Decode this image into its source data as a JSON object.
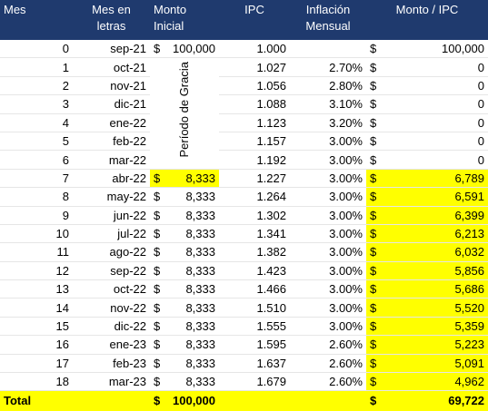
{
  "headers": {
    "mes": "Mes",
    "letras": "Mes en letras",
    "monto": "Monto Inicial",
    "ipc": "IPC",
    "inflacion": "Inflación Mensual",
    "monto_ipc": "Monto / IPC"
  },
  "grace_label": "Período de Gracia",
  "currency": "$",
  "highlight_color": "#ffff00",
  "header_color": "#1f3a6e",
  "rows": [
    {
      "mes": "0",
      "letras": "sep-21",
      "monto": "100,000",
      "ipc": "1.000",
      "inflacion": "",
      "monto_ipc": "100,000"
    },
    {
      "mes": "1",
      "letras": "oct-21",
      "monto": "",
      "ipc": "1.027",
      "inflacion": "2.70%",
      "monto_ipc": "0"
    },
    {
      "mes": "2",
      "letras": "nov-21",
      "monto": "",
      "ipc": "1.056",
      "inflacion": "2.80%",
      "monto_ipc": "0"
    },
    {
      "mes": "3",
      "letras": "dic-21",
      "monto": "",
      "ipc": "1.088",
      "inflacion": "3.10%",
      "monto_ipc": "0"
    },
    {
      "mes": "4",
      "letras": "ene-22",
      "monto": "",
      "ipc": "1.123",
      "inflacion": "3.20%",
      "monto_ipc": "0"
    },
    {
      "mes": "5",
      "letras": "feb-22",
      "monto": "",
      "ipc": "1.157",
      "inflacion": "3.00%",
      "monto_ipc": "0"
    },
    {
      "mes": "6",
      "letras": "mar-22",
      "monto": "",
      "ipc": "1.192",
      "inflacion": "3.00%",
      "monto_ipc": "0"
    },
    {
      "mes": "7",
      "letras": "abr-22",
      "monto": "8,333",
      "ipc": "1.227",
      "inflacion": "3.00%",
      "monto_ipc": "6,789"
    },
    {
      "mes": "8",
      "letras": "may-22",
      "monto": "8,333",
      "ipc": "1.264",
      "inflacion": "3.00%",
      "monto_ipc": "6,591"
    },
    {
      "mes": "9",
      "letras": "jun-22",
      "monto": "8,333",
      "ipc": "1.302",
      "inflacion": "3.00%",
      "monto_ipc": "6,399"
    },
    {
      "mes": "10",
      "letras": "jul-22",
      "monto": "8,333",
      "ipc": "1.341",
      "inflacion": "3.00%",
      "monto_ipc": "6,213"
    },
    {
      "mes": "11",
      "letras": "ago-22",
      "monto": "8,333",
      "ipc": "1.382",
      "inflacion": "3.00%",
      "monto_ipc": "6,032"
    },
    {
      "mes": "12",
      "letras": "sep-22",
      "monto": "8,333",
      "ipc": "1.423",
      "inflacion": "3.00%",
      "monto_ipc": "5,856"
    },
    {
      "mes": "13",
      "letras": "oct-22",
      "monto": "8,333",
      "ipc": "1.466",
      "inflacion": "3.00%",
      "monto_ipc": "5,686"
    },
    {
      "mes": "14",
      "letras": "nov-22",
      "monto": "8,333",
      "ipc": "1.510",
      "inflacion": "3.00%",
      "monto_ipc": "5,520"
    },
    {
      "mes": "15",
      "letras": "dic-22",
      "monto": "8,333",
      "ipc": "1.555",
      "inflacion": "3.00%",
      "monto_ipc": "5,359"
    },
    {
      "mes": "16",
      "letras": "ene-23",
      "monto": "8,333",
      "ipc": "1.595",
      "inflacion": "2.60%",
      "monto_ipc": "5,223"
    },
    {
      "mes": "17",
      "letras": "feb-23",
      "monto": "8,333",
      "ipc": "1.637",
      "inflacion": "2.60%",
      "monto_ipc": "5,091"
    },
    {
      "mes": "18",
      "letras": "mar-23",
      "monto": "8,333",
      "ipc": "1.679",
      "inflacion": "2.60%",
      "monto_ipc": "4,962"
    }
  ],
  "total": {
    "label": "Total",
    "monto": "100,000",
    "monto_ipc": "69,722"
  }
}
